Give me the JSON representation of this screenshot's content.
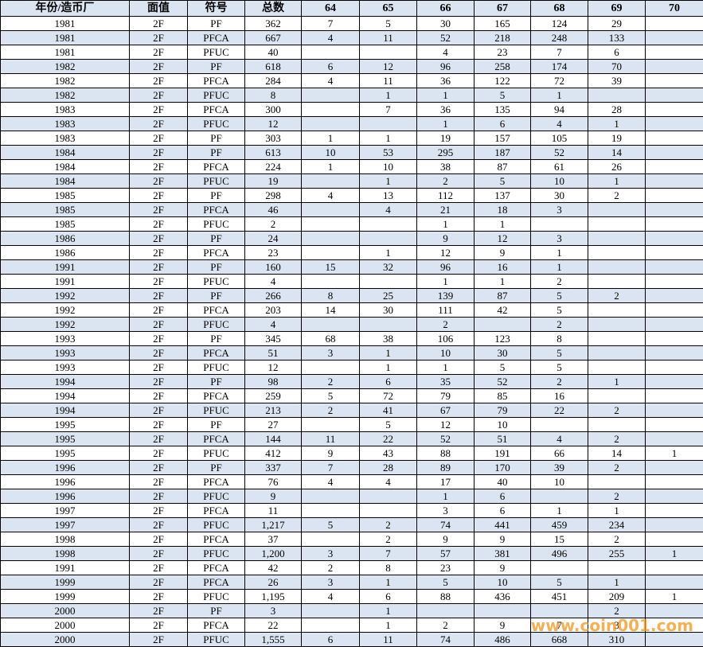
{
  "table": {
    "header": [
      "年份/造币厂",
      "面值",
      "符号",
      "总数",
      "64",
      "65",
      "66",
      "67",
      "68",
      "69",
      "70"
    ],
    "rows": [
      [
        "1981",
        "2F",
        "PF",
        "362",
        "7",
        "5",
        "30",
        "165",
        "124",
        "29",
        null
      ],
      [
        "1981",
        "2F",
        "PFCA",
        "667",
        "4",
        "11",
        "52",
        "218",
        "248",
        "133",
        null
      ],
      [
        "1981",
        "2F",
        "PFUC",
        "40",
        null,
        null,
        "4",
        "23",
        "7",
        "6",
        null
      ],
      [
        "1982",
        "2F",
        "PF",
        "618",
        "6",
        "12",
        "96",
        "258",
        "174",
        "70",
        null
      ],
      [
        "1982",
        "2F",
        "PFCA",
        "284",
        "4",
        "11",
        "36",
        "122",
        "72",
        "39",
        null
      ],
      [
        "1982",
        "2F",
        "PFUC",
        "8",
        null,
        "1",
        "1",
        "5",
        "1",
        null,
        null
      ],
      [
        "1983",
        "2F",
        "PFCA",
        "300",
        null,
        "7",
        "36",
        "135",
        "94",
        "28",
        null
      ],
      [
        "1983",
        "2F",
        "PFUC",
        "12",
        null,
        null,
        "1",
        "6",
        "4",
        "1",
        null
      ],
      [
        "1983",
        "2F",
        "PF",
        "303",
        "1",
        "1",
        "19",
        "157",
        "105",
        "19",
        null
      ],
      [
        "1984",
        "2F",
        "PF",
        "613",
        "10",
        "53",
        "295",
        "187",
        "52",
        "14",
        null
      ],
      [
        "1984",
        "2F",
        "PFCA",
        "224",
        "1",
        "10",
        "38",
        "87",
        "61",
        "26",
        null
      ],
      [
        "1984",
        "2F",
        "PFUC",
        "19",
        null,
        "1",
        "2",
        "5",
        "10",
        "1",
        null
      ],
      [
        "1985",
        "2F",
        "PF",
        "298",
        "4",
        "13",
        "112",
        "137",
        "30",
        "2",
        null
      ],
      [
        "1985",
        "2F",
        "PFCA",
        "46",
        null,
        "4",
        "21",
        "18",
        "3",
        null,
        null
      ],
      [
        "1985",
        "2F",
        "PFUC",
        "2",
        null,
        null,
        "1",
        "1",
        null,
        null,
        null
      ],
      [
        "1986",
        "2F",
        "PF",
        "24",
        null,
        null,
        "9",
        "12",
        "3",
        null,
        null
      ],
      [
        "1986",
        "2F",
        "PFCA",
        "23",
        null,
        "1",
        "12",
        "9",
        "1",
        null,
        null
      ],
      [
        "1991",
        "2F",
        "PF",
        "160",
        "15",
        "32",
        "96",
        "16",
        "1",
        null,
        null
      ],
      [
        "1991",
        "2F",
        "PFUC",
        "4",
        null,
        null,
        "1",
        "1",
        "2",
        null,
        null
      ],
      [
        "1992",
        "2F",
        "PF",
        "266",
        "8",
        "25",
        "139",
        "87",
        "5",
        "2",
        null
      ],
      [
        "1992",
        "2F",
        "PFCA",
        "203",
        "14",
        "30",
        "111",
        "42",
        "5",
        null,
        null
      ],
      [
        "1992",
        "2F",
        "PFUC",
        "4",
        null,
        null,
        "2",
        null,
        "2",
        null,
        null
      ],
      [
        "1993",
        "2F",
        "PF",
        "345",
        "68",
        "38",
        "106",
        "123",
        "8",
        null,
        null
      ],
      [
        "1993",
        "2F",
        "PFCA",
        "51",
        "3",
        "1",
        "10",
        "30",
        "5",
        null,
        null
      ],
      [
        "1993",
        "2F",
        "PFUC",
        "12",
        null,
        "1",
        "1",
        "5",
        "5",
        null,
        null
      ],
      [
        "1994",
        "2F",
        "PF",
        "98",
        "2",
        "6",
        "35",
        "52",
        "2",
        "1",
        null
      ],
      [
        "1994",
        "2F",
        "PFCA",
        "259",
        "5",
        "72",
        "79",
        "85",
        "16",
        null,
        null
      ],
      [
        "1994",
        "2F",
        "PFUC",
        "213",
        "2",
        "41",
        "67",
        "79",
        "22",
        "2",
        null
      ],
      [
        "1995",
        "2F",
        "PF",
        "27",
        null,
        "5",
        "12",
        "10",
        null,
        null,
        null
      ],
      [
        "1995",
        "2F",
        "PFCA",
        "144",
        "11",
        "22",
        "52",
        "51",
        "4",
        "2",
        null
      ],
      [
        "1995",
        "2F",
        "PFUC",
        "412",
        "9",
        "43",
        "88",
        "191",
        "66",
        "14",
        "1"
      ],
      [
        "1996",
        "2F",
        "PF",
        "337",
        "7",
        "28",
        "89",
        "170",
        "39",
        "2",
        null
      ],
      [
        "1996",
        "2F",
        "PFCA",
        "76",
        "4",
        "4",
        "17",
        "40",
        "10",
        null,
        null
      ],
      [
        "1996",
        "2F",
        "PFUC",
        "9",
        null,
        null,
        "1",
        "6",
        null,
        "2",
        null
      ],
      [
        "1997",
        "2F",
        "PFCA",
        "11",
        null,
        null,
        "3",
        "6",
        "1",
        "1",
        null
      ],
      [
        "1997",
        "2F",
        "PFUC",
        "1,217",
        "5",
        "2",
        "74",
        "441",
        "459",
        "234",
        null
      ],
      [
        "1998",
        "2F",
        "PFCA",
        "37",
        null,
        "2",
        "9",
        "9",
        "15",
        "2",
        null
      ],
      [
        "1998",
        "2F",
        "PFUC",
        "1,200",
        "3",
        "7",
        "57",
        "381",
        "496",
        "255",
        "1"
      ],
      [
        "1991",
        "2F",
        "PFCA",
        "42",
        "2",
        "8",
        "23",
        "9",
        null,
        null,
        null
      ],
      [
        "1999",
        "2F",
        "PFCA",
        "26",
        "3",
        "1",
        "5",
        "10",
        "5",
        "1",
        null
      ],
      [
        "1999",
        "2F",
        "PFUC",
        "1,195",
        "4",
        "6",
        "88",
        "436",
        "451",
        "209",
        "1"
      ],
      [
        "2000",
        "2F",
        "PF",
        "3",
        null,
        "1",
        null,
        null,
        null,
        "2",
        null
      ],
      [
        "2000",
        "2F",
        "PFCA",
        "22",
        null,
        "1",
        "2",
        "9",
        "7",
        "3",
        null
      ],
      [
        "2000",
        "2F",
        "PFUC",
        "1,555",
        "6",
        "11",
        "74",
        "486",
        "668",
        "310",
        null
      ]
    ]
  },
  "watermark": "www.coin001.com"
}
